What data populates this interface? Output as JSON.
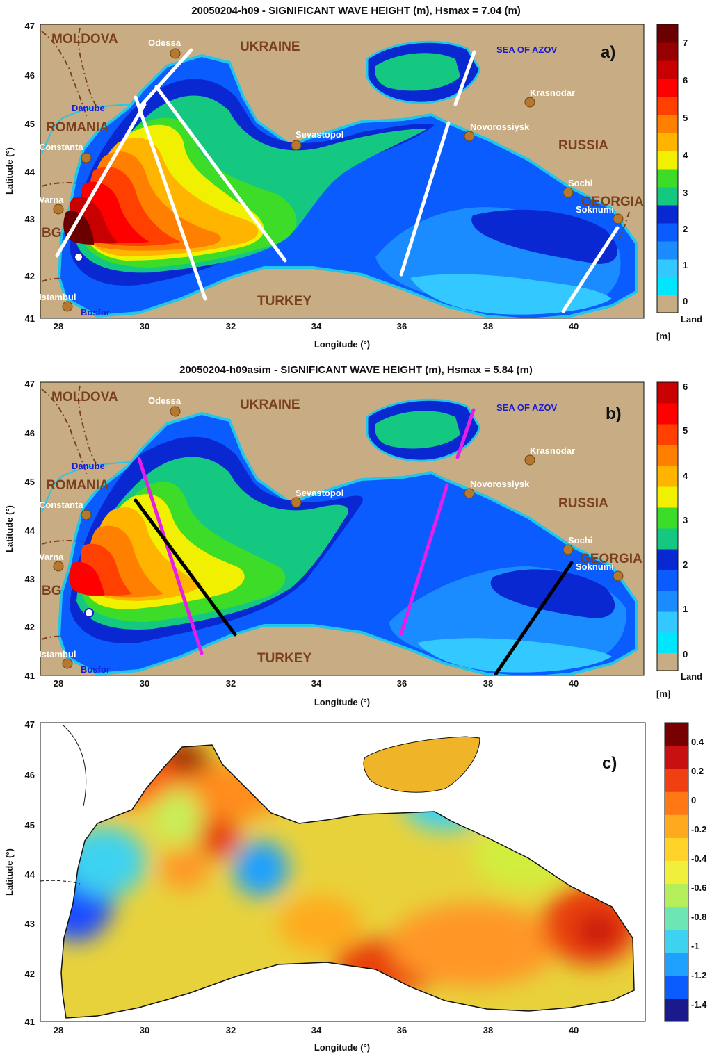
{
  "colors": {
    "land": "#c8ad84",
    "land_outline": "#111111",
    "coast_cyan": "#22c6e8",
    "track_white": "#ffffff",
    "track_magenta": "#e61fe6",
    "track_black": "#000000",
    "city_dot": "#b5782e",
    "country_text": "#7a3f1c",
    "water_text": "#1b1bd0",
    "wave_scale": [
      "#00e6ff",
      "#33c8ff",
      "#1a8cff",
      "#0a5cff",
      "#0a28d2",
      "#14c882",
      "#3cdc28",
      "#f0f000",
      "#ffb400",
      "#ff8000",
      "#ff4000",
      "#ff0000",
      "#c80000",
      "#960000",
      "#6a0000"
    ],
    "diff_scale": [
      "#1a1a8c",
      "#0a5cff",
      "#1ea0ff",
      "#3cd2f0",
      "#6ee6b4",
      "#b4ee5a",
      "#f0f03c",
      "#ffd228",
      "#ffaa1e",
      "#ff7814",
      "#f04010",
      "#c81010",
      "#780000"
    ]
  },
  "axes": {
    "xlabel": "Longitude (°)",
    "ylabel": "Latitude (°)",
    "xticks": [
      "28",
      "30",
      "32",
      "34",
      "36",
      "38",
      "40"
    ],
    "yticks": [
      "41",
      "42",
      "43",
      "44",
      "45",
      "46",
      "47"
    ]
  },
  "map_labels": {
    "countries": [
      "MOLDOVA",
      "UKRAINE",
      "ROMANIA",
      "RUSSIA",
      "BG",
      "GEORGIA",
      "TURKEY"
    ],
    "cities": [
      "Odessa",
      "Constanta",
      "Varna",
      "Istambul",
      "Sevastopol",
      "Novorossiysk",
      "Krasnodar",
      "Sochi",
      "Soknumi"
    ],
    "waters": [
      "SEA OF AZOV",
      "Danube",
      "Bosfor"
    ]
  },
  "panels": [
    {
      "id": "a",
      "title": "20050204-h09 - SIGNIFICANT WAVE HEIGHT (m), Hsmax = 7.04 (m)",
      "label": "a)",
      "colorbar_ticks": [
        "7",
        "6",
        "5",
        "4",
        "3",
        "2",
        "1",
        "0"
      ],
      "colorbar_land": "Land",
      "colorbar_unit": "[m]",
      "max_point": [
        28.5,
        42.3
      ]
    },
    {
      "id": "b",
      "title": "20050204-h09asim - SIGNIFICANT WAVE HEIGHT (m), Hsmax = 5.84 (m)",
      "label": "b)",
      "colorbar_ticks": [
        "6",
        "5",
        "4",
        "3",
        "2",
        "1",
        "0"
      ],
      "colorbar_land": "Land",
      "colorbar_unit": "[m]",
      "max_point": [
        28.7,
        42.3
      ]
    },
    {
      "id": "c",
      "title": "",
      "label": "c)",
      "colorbar_ticks": [
        "0.4",
        "0.2",
        "0",
        "-0.2",
        "-0.4",
        "-0.6",
        "-0.8",
        "-1",
        "-1.2",
        "-1.4"
      ]
    }
  ]
}
